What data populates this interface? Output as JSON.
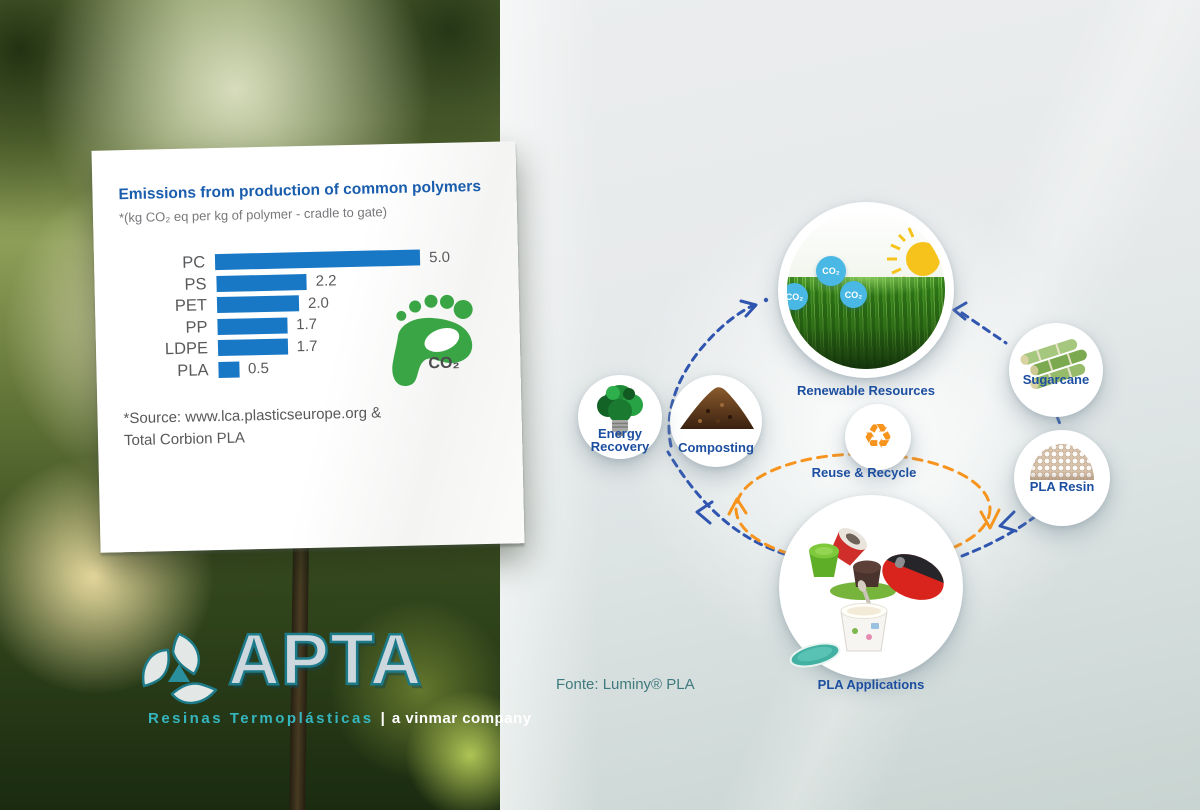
{
  "chart_data": {
    "type": "bar",
    "orientation": "horizontal",
    "title": "Emissions from production of common polymers",
    "subtitle": "*(kg CO₂ eq per kg of polymer - cradle to gate)",
    "categories": [
      "PC",
      "PS",
      "PET",
      "PP",
      "LDPE",
      "PLA"
    ],
    "values": [
      5.0,
      2.2,
      2.0,
      1.7,
      1.7,
      0.5
    ],
    "values_display": [
      "5.0",
      "2.2",
      "2.0",
      "1.7",
      "1.7",
      "0.5"
    ],
    "xlim": [
      0,
      5
    ],
    "bar_color": "#1878c6",
    "footprint_label": "CO₂",
    "source_line1": "*Source: www.lca.plasticseurope.org &",
    "source_line2": "Total Corbion PLA"
  },
  "logo": {
    "name": "APTA",
    "tagline_left": "Resinas Termoplásticas",
    "tagline_sep": "|",
    "tagline_right": "a vinmar company"
  },
  "diagram": {
    "labels": {
      "renewable": "Renewable Resources",
      "sugarcane": "Sugarcane",
      "resin": "PLA Resin",
      "applications": "PLA Applications",
      "reuse": "Reuse & Recycle",
      "composting": "Composting",
      "energy": "Energy Recovery"
    },
    "co2_bubble": "CO₂",
    "recycle_glyph": "♻",
    "colors": {
      "arrow_blue": "#2f55b0",
      "arrow_orange": "#f7941d",
      "label_blue": "#1d4fa0"
    },
    "source_note": "Fonte: Luminy® PLA"
  }
}
